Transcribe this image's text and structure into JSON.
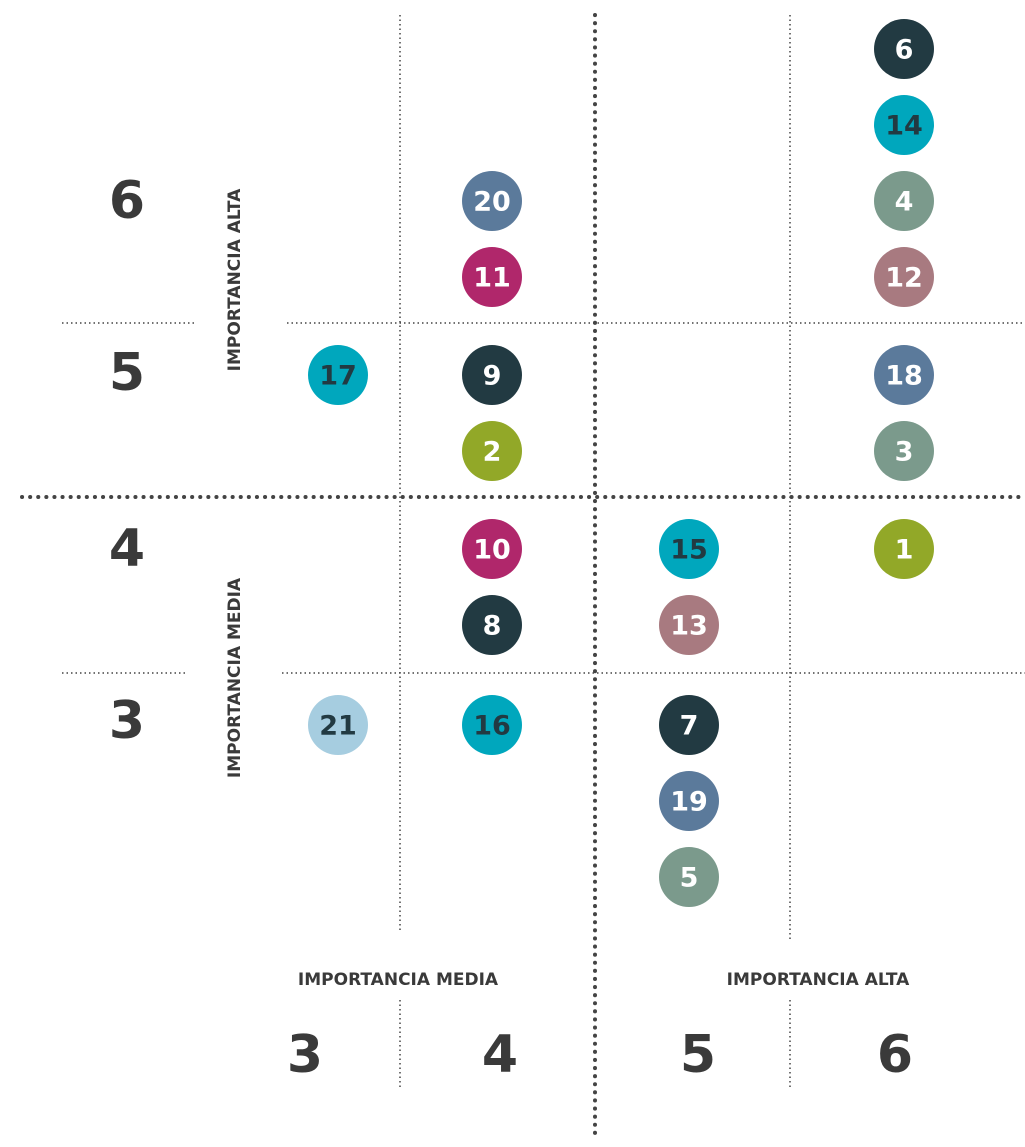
{
  "y_axis": {
    "groups": [
      {
        "label": "IMPORTANCIA ALTA",
        "scores": [
          "6",
          "5"
        ]
      },
      {
        "label": "IMPORTANCIA MEDIA",
        "scores": [
          "4",
          "3"
        ]
      }
    ]
  },
  "x_axis": {
    "groups": [
      {
        "label": "IMPORTANCIA MEDIA",
        "scores": [
          "3",
          "4"
        ]
      },
      {
        "label": "IMPORTANCIA ALTA",
        "scores": [
          "5",
          "6"
        ]
      }
    ]
  },
  "grid": [
    [
      [],
      [
        {
          "label": "20",
          "color": "#5b7a9b",
          "text_color": "#ffffff"
        },
        {
          "label": "11",
          "color": "#b0276b",
          "text_color": "#ffffff"
        }
      ],
      [],
      [
        {
          "label": "6",
          "color": "#223a42",
          "text_color": "#ffffff"
        },
        {
          "label": "14",
          "color": "#00a7bd",
          "text_color": "#223a42"
        },
        {
          "label": "4",
          "color": "#7b9a8c",
          "text_color": "#ffffff"
        },
        {
          "label": "12",
          "color": "#a87a80",
          "text_color": "#ffffff"
        }
      ]
    ],
    [
      [
        {
          "label": "17",
          "color": "#00a7bd",
          "text_color": "#223a42"
        }
      ],
      [
        {
          "label": "9",
          "color": "#223a42",
          "text_color": "#ffffff"
        },
        {
          "label": "2",
          "color": "#92a828",
          "text_color": "#ffffff"
        }
      ],
      [],
      [
        {
          "label": "18",
          "color": "#5b7a9b",
          "text_color": "#ffffff"
        },
        {
          "label": "3",
          "color": "#7b9a8c",
          "text_color": "#ffffff"
        }
      ]
    ],
    [
      [],
      [
        {
          "label": "10",
          "color": "#b0276b",
          "text_color": "#ffffff"
        },
        {
          "label": "8",
          "color": "#223a42",
          "text_color": "#ffffff"
        }
      ],
      [
        {
          "label": "15",
          "color": "#00a7bd",
          "text_color": "#223a42"
        },
        {
          "label": "13",
          "color": "#a87a80",
          "text_color": "#ffffff"
        }
      ],
      [
        {
          "label": "1",
          "color": "#92a828",
          "text_color": "#ffffff"
        }
      ]
    ],
    [
      [
        {
          "label": "21",
          "color": "#a6cde0",
          "text_color": "#223a42"
        }
      ],
      [
        {
          "label": "16",
          "color": "#00a7bd",
          "text_color": "#223a42"
        }
      ],
      [
        {
          "label": "7",
          "color": "#223a42",
          "text_color": "#ffffff"
        },
        {
          "label": "19",
          "color": "#5b7a9b",
          "text_color": "#ffffff"
        },
        {
          "label": "5",
          "color": "#7b9a8c",
          "text_color": "#ffffff"
        }
      ],
      []
    ]
  ]
}
